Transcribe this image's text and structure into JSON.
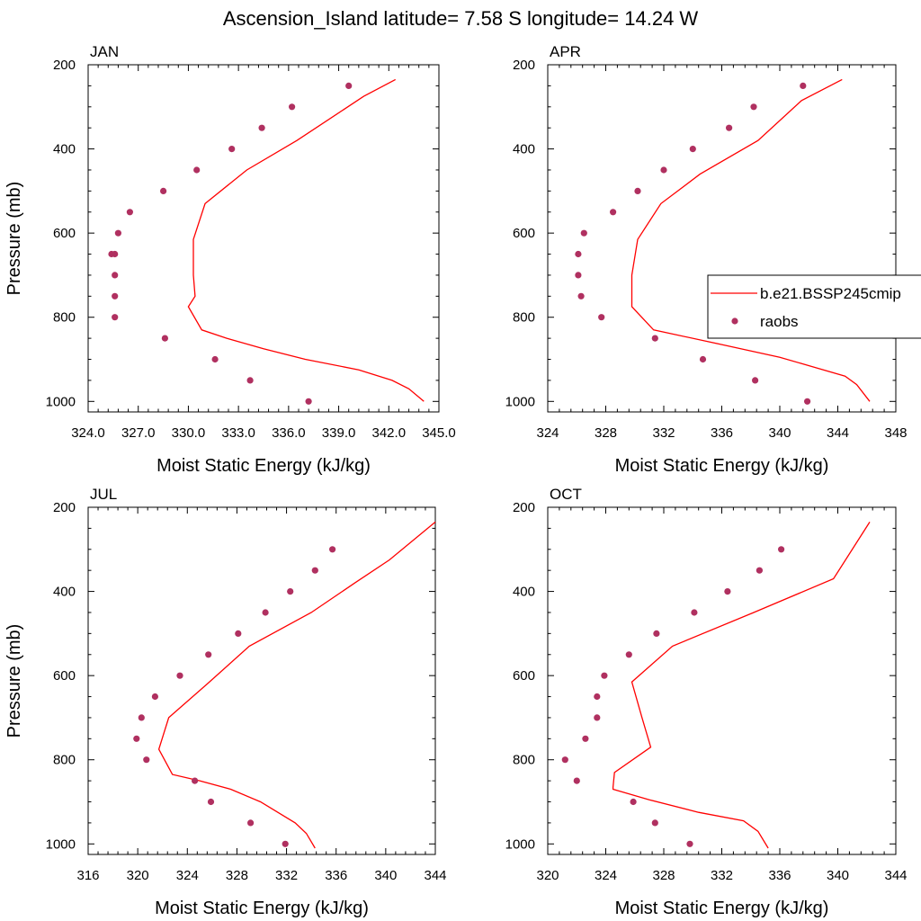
{
  "figure": {
    "title": "Ascension_Island  latitude= 7.58 S longitude= 14.24 W"
  },
  "legend": {
    "location": "right of APR panel",
    "items": [
      {
        "label": "b.e21.BSSP245cmip",
        "kind": "line",
        "color": "#ff0000"
      },
      {
        "label": "raobs",
        "kind": "marker",
        "color": "#b03060"
      }
    ]
  },
  "colors": {
    "model_line": "#ff0000",
    "raobs_marker": "#b03060"
  },
  "chart_data": [
    {
      "type": "line",
      "panel": "JAN",
      "title": "JAN",
      "xlabel": "Moist Static Energy (kJ/kg)",
      "ylabel": "Pressure (mb)",
      "xlim": [
        324,
        345
      ],
      "ylim": [
        1025,
        200
      ],
      "xticks": [
        324,
        327,
        330,
        333,
        336,
        339,
        342,
        345
      ],
      "xtick_labels": [
        "324.0",
        "327.0",
        "330.0",
        "333.0",
        "336.0",
        "339.0",
        "342.0",
        "345.0"
      ],
      "yticks": [
        200,
        400,
        600,
        800,
        1000
      ],
      "ytick_labels": [
        "200",
        "400",
        "600",
        "800",
        "1000"
      ],
      "series": [
        {
          "name": "b.e21.BSSP245cmip",
          "style": "line",
          "x": [
            344.1,
            343.2,
            342.2,
            340.2,
            337.0,
            334.5,
            332.3,
            330.8,
            330.0,
            330.4,
            330.3,
            330.3,
            331.0,
            333.5,
            336.5,
            340.5,
            342.4
          ],
          "y": [
            1000,
            970,
            950,
            925,
            900,
            875,
            850,
            830,
            775,
            750,
            700,
            615,
            530,
            450,
            380,
            275,
            235
          ]
        },
        {
          "name": "raobs",
          "style": "markers",
          "x": [
            337.2,
            333.7,
            331.6,
            328.6,
            325.6,
            325.6,
            325.6,
            325.4,
            325.6,
            325.8,
            326.5,
            328.5,
            330.5,
            332.6,
            334.4,
            336.2,
            339.6
          ],
          "y": [
            1000,
            950,
            900,
            850,
            800,
            750,
            700,
            650,
            650,
            600,
            550,
            500,
            450,
            400,
            350,
            300,
            250
          ]
        }
      ]
    },
    {
      "type": "line",
      "panel": "APR",
      "title": "APR",
      "xlabel": "Moist Static Energy (kJ/kg)",
      "ylabel": "",
      "xlim": [
        324,
        348
      ],
      "ylim": [
        1025,
        200
      ],
      "xticks": [
        324,
        328,
        332,
        336,
        340,
        344,
        348
      ],
      "xtick_labels": [
        "324",
        "328",
        "332",
        "336",
        "340",
        "344",
        "348"
      ],
      "yticks": [
        200,
        400,
        600,
        800,
        1000
      ],
      "ytick_labels": [
        "200",
        "400",
        "600",
        "800",
        "1000"
      ],
      "series": [
        {
          "name": "b.e21.BSSP245cmip",
          "style": "line",
          "x": [
            346.2,
            345.3,
            344.5,
            342.5,
            340.0,
            336.0,
            331.3,
            329.8,
            329.8,
            329.8,
            330.2,
            331.8,
            334.5,
            338.5,
            341.5,
            344.3
          ],
          "y": [
            1000,
            960,
            940,
            920,
            895,
            865,
            830,
            775,
            750,
            700,
            615,
            530,
            460,
            380,
            285,
            235
          ]
        },
        {
          "name": "raobs",
          "style": "markers",
          "x": [
            341.9,
            338.3,
            334.7,
            331.4,
            327.7,
            326.3,
            326.1,
            326.1,
            326.5,
            328.5,
            330.2,
            332.0,
            334.0,
            336.5,
            338.2,
            341.6
          ],
          "y": [
            1000,
            950,
            900,
            850,
            800,
            750,
            700,
            650,
            600,
            550,
            500,
            450,
            400,
            350,
            300,
            250
          ]
        }
      ]
    },
    {
      "type": "line",
      "panel": "JUL",
      "title": "JUL",
      "xlabel": "Moist Static Energy (kJ/kg)",
      "ylabel": "Pressure (mb)",
      "xlim": [
        316,
        344
      ],
      "ylim": [
        1025,
        200
      ],
      "xticks": [
        316,
        320,
        324,
        328,
        332,
        336,
        340,
        344
      ],
      "xtick_labels": [
        "316",
        "320",
        "324",
        "328",
        "332",
        "336",
        "340",
        "344"
      ],
      "yticks": [
        200,
        400,
        600,
        800,
        1000
      ],
      "ytick_labels": [
        "200",
        "400",
        "600",
        "800",
        "1000"
      ],
      "series": [
        {
          "name": "b.e21.BSSP245cmip",
          "style": "line",
          "x": [
            334.3,
            333.6,
            332.7,
            329.9,
            327.5,
            325.0,
            322.8,
            321.7,
            322.5,
            325.6,
            329.0,
            334.0,
            337.5,
            340.3,
            344.0
          ],
          "y": [
            1010,
            975,
            950,
            900,
            870,
            850,
            835,
            775,
            700,
            620,
            530,
            450,
            380,
            325,
            235
          ]
        },
        {
          "name": "raobs",
          "style": "markers",
          "x": [
            331.9,
            329.1,
            325.9,
            324.6,
            320.7,
            319.9,
            320.3,
            321.4,
            323.4,
            325.7,
            328.1,
            330.3,
            332.3,
            334.3,
            335.7
          ],
          "y": [
            1000,
            950,
            900,
            850,
            800,
            750,
            700,
            650,
            600,
            550,
            500,
            450,
            400,
            350,
            300
          ]
        }
      ]
    },
    {
      "type": "line",
      "panel": "OCT",
      "title": "OCT",
      "xlabel": "Moist Static Energy (kJ/kg)",
      "ylabel": "",
      "xlim": [
        320,
        344
      ],
      "ylim": [
        1025,
        200
      ],
      "xticks": [
        320,
        324,
        328,
        332,
        336,
        340,
        344
      ],
      "xtick_labels": [
        "320",
        "324",
        "328",
        "332",
        "336",
        "340",
        "344"
      ],
      "yticks": [
        200,
        400,
        600,
        800,
        1000
      ],
      "ytick_labels": [
        "200",
        "400",
        "600",
        "800",
        "1000"
      ],
      "series": [
        {
          "name": "b.e21.BSSP245cmip",
          "style": "line",
          "x": [
            335.2,
            334.5,
            333.5,
            330.4,
            327.0,
            324.5,
            324.5,
            324.6,
            327.1,
            326.5,
            325.8,
            328.6,
            334.2,
            339.7,
            342.2
          ],
          "y": [
            1010,
            970,
            945,
            925,
            895,
            870,
            865,
            830,
            770,
            700,
            615,
            530,
            450,
            370,
            235
          ]
        },
        {
          "name": "raobs",
          "style": "markers",
          "x": [
            329.8,
            327.4,
            325.9,
            322.0,
            321.2,
            322.6,
            323.4,
            323.4,
            323.9,
            325.6,
            327.5,
            330.1,
            332.4,
            334.6,
            336.1
          ],
          "y": [
            1000,
            950,
            900,
            850,
            800,
            750,
            700,
            650,
            600,
            550,
            500,
            450,
            400,
            350,
            300
          ]
        }
      ]
    }
  ]
}
